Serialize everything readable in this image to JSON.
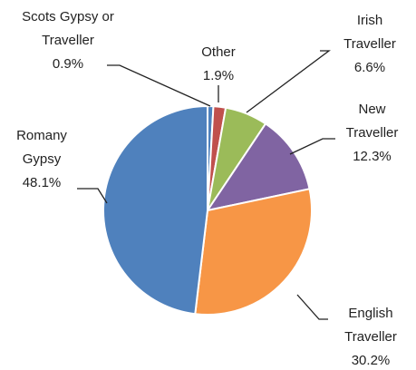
{
  "chart_data": {
    "type": "pie",
    "categories": [
      "Scots Gypsy or Traveller",
      "Other",
      "Irish Traveller",
      "New Traveller",
      "English Traveller",
      "Romany Gypsy"
    ],
    "values": [
      0.9,
      1.9,
      6.6,
      12.3,
      30.2,
      48.1
    ],
    "value_labels": [
      "0.9%",
      "1.9%",
      "6.6%",
      "12.3%",
      "30.2%",
      "48.1%"
    ],
    "colors": [
      "#4f81bd",
      "#c0504d",
      "#9bbb59",
      "#8064a2",
      "#f79646",
      "#4f81bd"
    ]
  }
}
